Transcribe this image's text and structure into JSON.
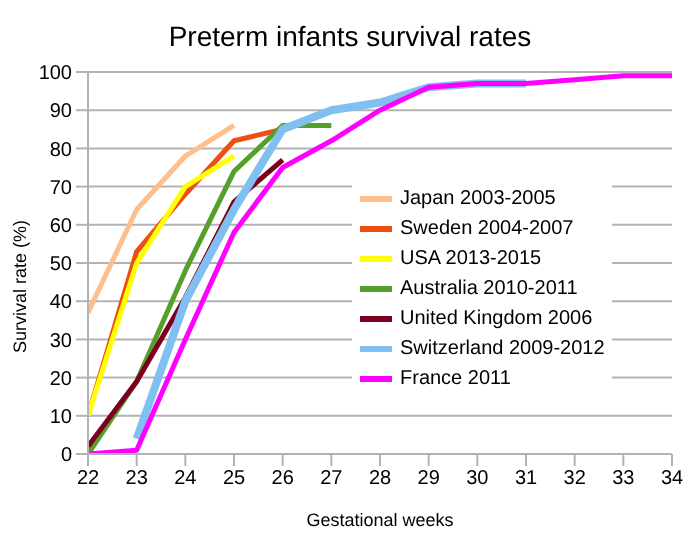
{
  "chart_data": {
    "type": "line",
    "title": "Preterm infants survival rates",
    "xlabel": "Gestational weeks",
    "ylabel": "Survival rate (%)",
    "x": [
      22,
      23,
      24,
      25,
      26,
      27,
      28,
      29,
      30,
      31,
      32,
      33,
      34
    ],
    "series": [
      {
        "name": "Japan 2003-2005",
        "color": "#ffbf8c",
        "values": [
          37,
          64,
          78,
          86,
          null,
          null,
          null,
          null,
          null,
          null,
          null,
          null,
          null
        ]
      },
      {
        "name": "Sweden 2004-2007",
        "color": "#ee4e10",
        "values": [
          10,
          53,
          68,
          82,
          85,
          null,
          null,
          null,
          null,
          null,
          null,
          null,
          null
        ]
      },
      {
        "name": "USA 2013-2015",
        "color": "#ffff00",
        "values": [
          10,
          50,
          70,
          78,
          null,
          null,
          null,
          null,
          null,
          null,
          null,
          null,
          null
        ]
      },
      {
        "name": "Australia 2010-2011",
        "color": "#55a02a",
        "values": [
          0,
          19,
          48,
          74,
          86,
          86,
          null,
          null,
          null,
          null,
          null,
          null,
          null
        ]
      },
      {
        "name": "United Kingdom 2006",
        "color": "#7b0020",
        "values": [
          2,
          19,
          41,
          66,
          77,
          null,
          null,
          null,
          null,
          null,
          null,
          null,
          null
        ]
      },
      {
        "name": "Switzerland 2009-2012",
        "color": "#80c0f0",
        "values": [
          null,
          4,
          40,
          64,
          85,
          90,
          92,
          96,
          97,
          97,
          null,
          null,
          null
        ]
      },
      {
        "name": "France 2011",
        "color": "#ff00ff",
        "values": [
          0,
          1,
          30,
          58,
          75,
          82,
          90,
          96,
          97,
          97,
          98,
          99,
          99
        ]
      }
    ],
    "xlim": [
      22,
      34
    ],
    "xticks": [
      22,
      23,
      24,
      25,
      26,
      27,
      28,
      29,
      30,
      31,
      32,
      33,
      34
    ],
    "ylim": [
      0,
      100
    ],
    "yticks": [
      0,
      10,
      20,
      30,
      40,
      50,
      60,
      70,
      80,
      90,
      100
    ],
    "grid": "y",
    "legend": "right",
    "marker": "none",
    "line_style": "solid"
  }
}
